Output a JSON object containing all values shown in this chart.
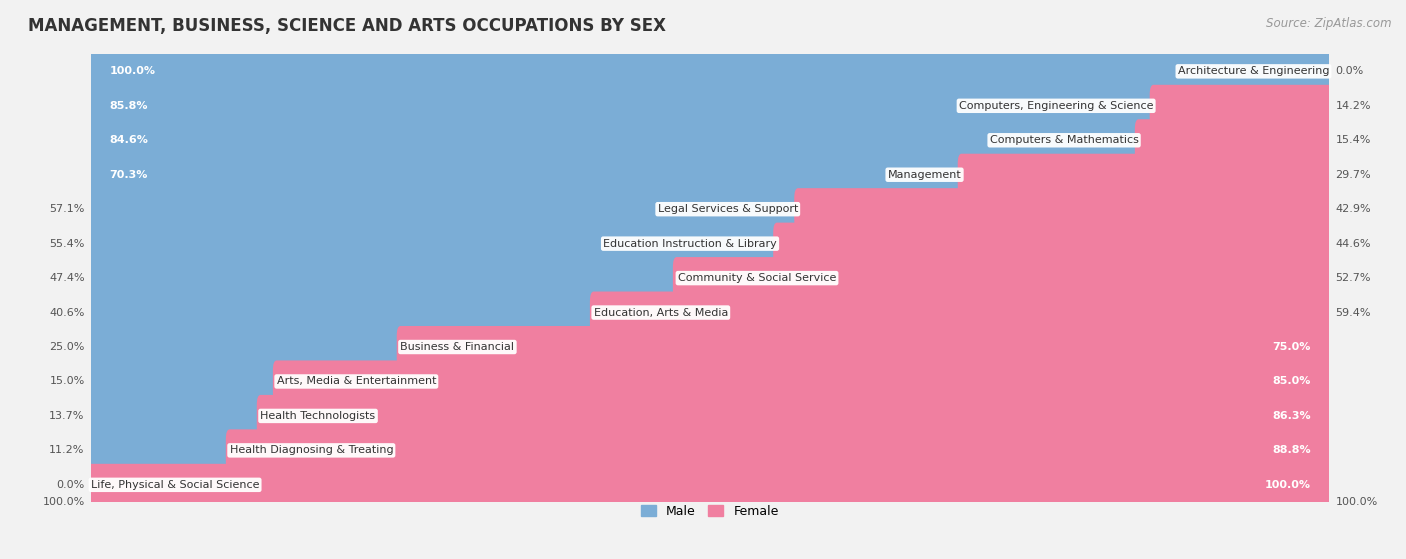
{
  "title": "MANAGEMENT, BUSINESS, SCIENCE AND ARTS OCCUPATIONS BY SEX",
  "source": "Source: ZipAtlas.com",
  "categories": [
    "Architecture & Engineering",
    "Computers, Engineering & Science",
    "Computers & Mathematics",
    "Management",
    "Legal Services & Support",
    "Education Instruction & Library",
    "Community & Social Service",
    "Education, Arts & Media",
    "Business & Financial",
    "Arts, Media & Entertainment",
    "Health Technologists",
    "Health Diagnosing & Treating",
    "Life, Physical & Social Science"
  ],
  "male": [
    100.0,
    85.8,
    84.6,
    70.3,
    57.1,
    55.4,
    47.4,
    40.6,
    25.0,
    15.0,
    13.7,
    11.2,
    0.0
  ],
  "female": [
    0.0,
    14.2,
    15.4,
    29.7,
    42.9,
    44.6,
    52.7,
    59.4,
    75.0,
    85.0,
    86.3,
    88.8,
    100.0
  ],
  "male_color": "#7badd6",
  "female_color": "#f07fa0",
  "bg_color": "#f2f2f2",
  "row_bg_color": "#ffffff",
  "row_alt_bg": "#f7f7f7",
  "title_fontsize": 12,
  "label_fontsize": 8,
  "pct_fontsize": 8,
  "legend_fontsize": 9,
  "source_fontsize": 8.5
}
